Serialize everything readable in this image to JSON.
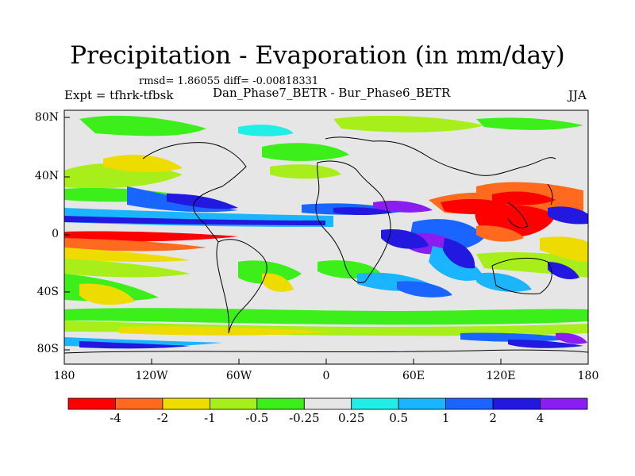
{
  "title": "Precipitation - Evaporation (in mm/day)",
  "stats": {
    "text": "rmsd= 1.86055 diff= -0.00818331",
    "rmsd": 1.86055,
    "diff": -0.00818331
  },
  "expt_label": "Expt = tfhrk-tfbsk",
  "diff_label": "Dan_Phase7_BETR - Bur_Phase6_BETR",
  "season": "JJA",
  "map": {
    "projection": "cylindrical equidistant",
    "lat_ticks": [
      "80N",
      "40N",
      "0",
      "40S",
      "80S"
    ],
    "lon_ticks": [
      "180",
      "120W",
      "60W",
      "0",
      "60E",
      "120E",
      "180"
    ]
  },
  "colorbar": {
    "colors": [
      "#ff0000",
      "#ff6a1f",
      "#eedc00",
      "#a8ee1a",
      "#3cee1a",
      "#e6e6e6",
      "#22eee8",
      "#1ab4ff",
      "#1a64ff",
      "#2218e0",
      "#8a1ef0"
    ],
    "labels": [
      "-4",
      "-2",
      "-1",
      "-0.5",
      "-0.25",
      "0.25",
      "0.5",
      "1",
      "2",
      "4"
    ]
  },
  "field_colors": {
    "land_bg": "#e6e6e6",
    "coast": "#000000"
  }
}
